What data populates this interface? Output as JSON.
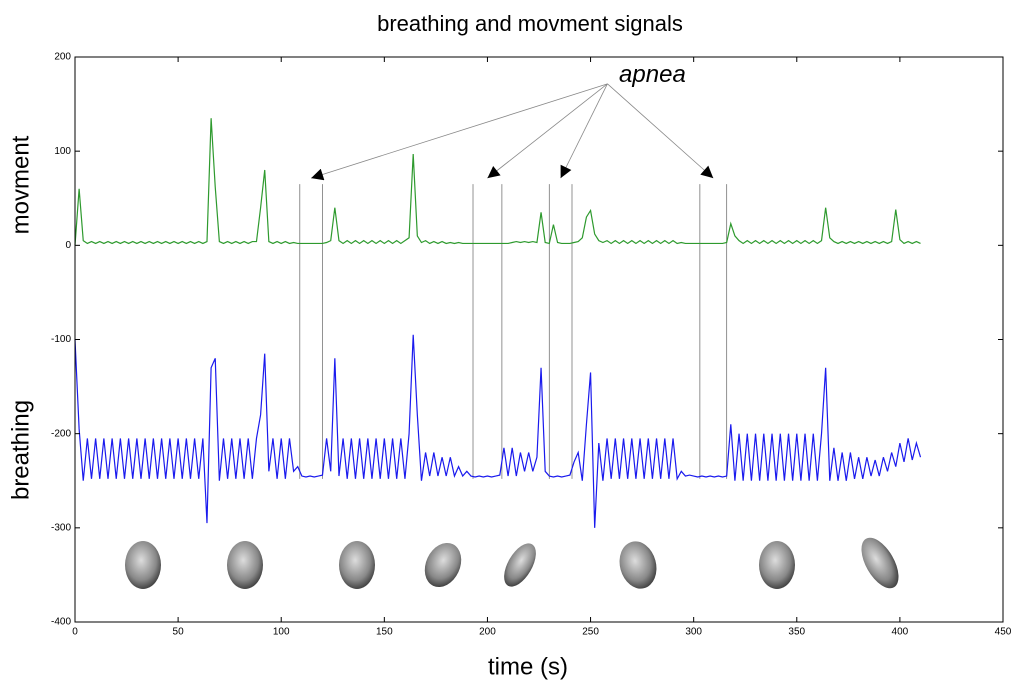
{
  "chart_data": {
    "type": "line",
    "title": "breathing and movment signals",
    "xlabel": "time (s)",
    "ylabels": [
      "movment",
      "breathing"
    ],
    "xlim": [
      0,
      450
    ],
    "xticks": [
      0,
      50,
      100,
      150,
      200,
      250,
      300,
      350,
      400,
      450
    ],
    "ylim": [
      -400,
      200
    ],
    "yticks": [
      -400,
      -300,
      -200,
      -100,
      0,
      100,
      200
    ],
    "grid": false,
    "annotation": {
      "text": "apnea",
      "xy_text": [
        280,
        180
      ],
      "intervals": [
        [
          109,
          120
        ],
        [
          193,
          207
        ],
        [
          230,
          241
        ],
        [
          303,
          316
        ]
      ],
      "y_range": [
        65,
        -248
      ]
    },
    "x": [
      0,
      2,
      4,
      6,
      8,
      10,
      12,
      14,
      16,
      18,
      20,
      22,
      24,
      26,
      28,
      30,
      32,
      34,
      36,
      38,
      40,
      42,
      44,
      46,
      48,
      50,
      52,
      54,
      56,
      58,
      60,
      62,
      64,
      66,
      68,
      70,
      72,
      74,
      76,
      78,
      80,
      82,
      84,
      86,
      88,
      90,
      92,
      94,
      96,
      98,
      100,
      102,
      104,
      106,
      108,
      110,
      112,
      114,
      116,
      118,
      120,
      122,
      124,
      126,
      128,
      130,
      132,
      134,
      136,
      138,
      140,
      142,
      144,
      146,
      148,
      150,
      152,
      154,
      156,
      158,
      160,
      162,
      164,
      166,
      168,
      170,
      172,
      174,
      176,
      178,
      180,
      182,
      184,
      186,
      188,
      190,
      192,
      194,
      196,
      198,
      200,
      202,
      204,
      206,
      208,
      210,
      212,
      214,
      216,
      218,
      220,
      222,
      224,
      226,
      228,
      230,
      232,
      234,
      236,
      238,
      240,
      242,
      244,
      246,
      248,
      250,
      252,
      254,
      256,
      258,
      260,
      262,
      264,
      266,
      268,
      270,
      272,
      274,
      276,
      278,
      280,
      282,
      284,
      286,
      288,
      290,
      292,
      294,
      296,
      298,
      300,
      302,
      304,
      306,
      308,
      310,
      312,
      314,
      316,
      318,
      320,
      322,
      324,
      326,
      328,
      330,
      332,
      334,
      336,
      338,
      340,
      342,
      344,
      346,
      348,
      350,
      352,
      354,
      356,
      358,
      360,
      362,
      364,
      366,
      368,
      370,
      372,
      374,
      376,
      378,
      380,
      382,
      384,
      386,
      388,
      390,
      392,
      394,
      396,
      398,
      400,
      402,
      404,
      406,
      408,
      410
    ],
    "series": [
      {
        "color": "#2e9a2e",
        "values": [
          0,
          60,
          5,
          2,
          4,
          2,
          4,
          2,
          4,
          2,
          4,
          2,
          4,
          2,
          4,
          2,
          4,
          2,
          4,
          2,
          4,
          2,
          4,
          2,
          4,
          2,
          4,
          2,
          4,
          2,
          4,
          2,
          4,
          135,
          62,
          4,
          2,
          4,
          2,
          4,
          2,
          4,
          2,
          4,
          4,
          40,
          80,
          4,
          2,
          4,
          2,
          4,
          2,
          3,
          2,
          2,
          2,
          2,
          2,
          2,
          2,
          3,
          5,
          40,
          5,
          2,
          5,
          2,
          5,
          2,
          5,
          2,
          5,
          2,
          5,
          2,
          5,
          2,
          5,
          2,
          5,
          8,
          97,
          10,
          3,
          5,
          2,
          4,
          2,
          4,
          2,
          3,
          2,
          3,
          2,
          2,
          2,
          2,
          2,
          2,
          2,
          2,
          2,
          2,
          2,
          2,
          3,
          4,
          3,
          4,
          3,
          4,
          3,
          35,
          3,
          2,
          22,
          3,
          2,
          2,
          2,
          3,
          4,
          8,
          30,
          37,
          12,
          5,
          3,
          5,
          2,
          5,
          2,
          5,
          2,
          5,
          2,
          5,
          2,
          5,
          2,
          5,
          2,
          5,
          2,
          5,
          2,
          3,
          2,
          2,
          2,
          2,
          2,
          2,
          2,
          2,
          2,
          2,
          3,
          23,
          10,
          5,
          2,
          5,
          2,
          5,
          2,
          5,
          2,
          5,
          2,
          5,
          2,
          5,
          2,
          5,
          2,
          5,
          2,
          5,
          2,
          5,
          40,
          8,
          4,
          2,
          4,
          2,
          4,
          2,
          4,
          2,
          4,
          2,
          4,
          2,
          4,
          2,
          4,
          38,
          6,
          2,
          4,
          2,
          4,
          2
        ]
      },
      {
        "color": "#1a1aee",
        "values": [
          -100,
          -195,
          -250,
          -205,
          -248,
          -205,
          -248,
          -205,
          -248,
          -205,
          -248,
          -205,
          -248,
          -205,
          -248,
          -205,
          -248,
          -205,
          -248,
          -205,
          -248,
          -205,
          -248,
          -205,
          -248,
          -205,
          -248,
          -205,
          -248,
          -205,
          -248,
          -205,
          -295,
          -130,
          -120,
          -250,
          -205,
          -248,
          -205,
          -248,
          -205,
          -248,
          -205,
          -248,
          -205,
          -180,
          -115,
          -240,
          -205,
          -248,
          -205,
          -248,
          -205,
          -240,
          -235,
          -245,
          -246,
          -245,
          -246,
          -245,
          -244,
          -205,
          -240,
          -120,
          -245,
          -205,
          -248,
          -205,
          -248,
          -205,
          -248,
          -205,
          -248,
          -205,
          -248,
          -205,
          -248,
          -205,
          -248,
          -205,
          -248,
          -200,
          -95,
          -180,
          -250,
          -220,
          -245,
          -220,
          -245,
          -225,
          -245,
          -225,
          -245,
          -235,
          -245,
          -240,
          -245,
          -246,
          -245,
          -246,
          -245,
          -246,
          -245,
          -244,
          -215,
          -245,
          -215,
          -245,
          -220,
          -240,
          -220,
          -240,
          -225,
          -130,
          -240,
          -245,
          -246,
          -245,
          -246,
          -245,
          -244,
          -230,
          -220,
          -250,
          -190,
          -135,
          -300,
          -210,
          -250,
          -205,
          -248,
          -205,
          -248,
          -205,
          -248,
          -205,
          -248,
          -205,
          -248,
          -205,
          -248,
          -205,
          -248,
          -205,
          -248,
          -205,
          -248,
          -240,
          -245,
          -244,
          -245,
          -246,
          -245,
          -246,
          -245,
          -246,
          -245,
          -246,
          -245,
          -190,
          -250,
          -200,
          -250,
          -200,
          -250,
          -200,
          -250,
          -200,
          -250,
          -200,
          -250,
          -200,
          -250,
          -200,
          -250,
          -200,
          -250,
          -200,
          -250,
          -200,
          -250,
          -200,
          -130,
          -250,
          -215,
          -250,
          -220,
          -250,
          -220,
          -248,
          -225,
          -248,
          -225,
          -245,
          -228,
          -245,
          -225,
          -240,
          -220,
          -235,
          -210,
          -230,
          -205,
          -228,
          -210,
          -225
        ]
      }
    ]
  }
}
